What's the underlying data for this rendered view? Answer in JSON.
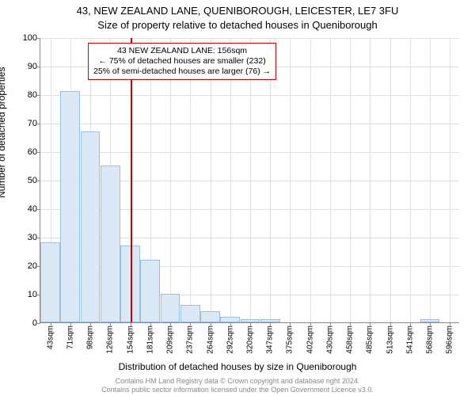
{
  "title_line1": "43, NEW ZEALAND LANE, QUENIBOROUGH, LEICESTER, LE7 3FU",
  "title_line2": "Size of property relative to detached houses in Queniborough",
  "y_axis_label": "Number of detached properties",
  "x_axis_label": "Distribution of detached houses by size in Queniborough",
  "footer_line1": "Contains HM Land Registry data © Crown copyright and database right 2024.",
  "footer_line2": "Contains public sector information licensed under the Open Government Licence v3.0.",
  "chart": {
    "type": "histogram",
    "ylim": [
      0,
      100
    ],
    "ytick_step": 10,
    "background_color": "#ffffff",
    "grid_color": "#e0e0e0",
    "axis_color": "#888888",
    "bar_fill": "#dbe9f7",
    "bar_border": "#9bbfe0",
    "refline_color": "#cc0000",
    "title_fontsize": 13,
    "label_fontsize": 12,
    "tick_fontsize": 11,
    "xtick_fontsize": 10,
    "categories": [
      "43sqm",
      "71sqm",
      "98sqm",
      "126sqm",
      "154sqm",
      "181sqm",
      "209sqm",
      "237sqm",
      "264sqm",
      "292sqm",
      "320sqm",
      "347sqm",
      "375sqm",
      "402sqm",
      "430sqm",
      "458sqm",
      "485sqm",
      "513sqm",
      "541sqm",
      "568sqm",
      "596sqm"
    ],
    "values": [
      28,
      81,
      67,
      55,
      27,
      22,
      10,
      6,
      4,
      2,
      1,
      1,
      0,
      0,
      0,
      0,
      0,
      0,
      0,
      1,
      0
    ],
    "reference_index": 4,
    "annotation": {
      "lines": [
        "43 NEW ZEALAND LANE: 156sqm",
        "← 75% of detached houses are smaller (232)",
        "25% of semi-detached houses are larger (76) →"
      ],
      "border_color": "#cc0000"
    }
  }
}
